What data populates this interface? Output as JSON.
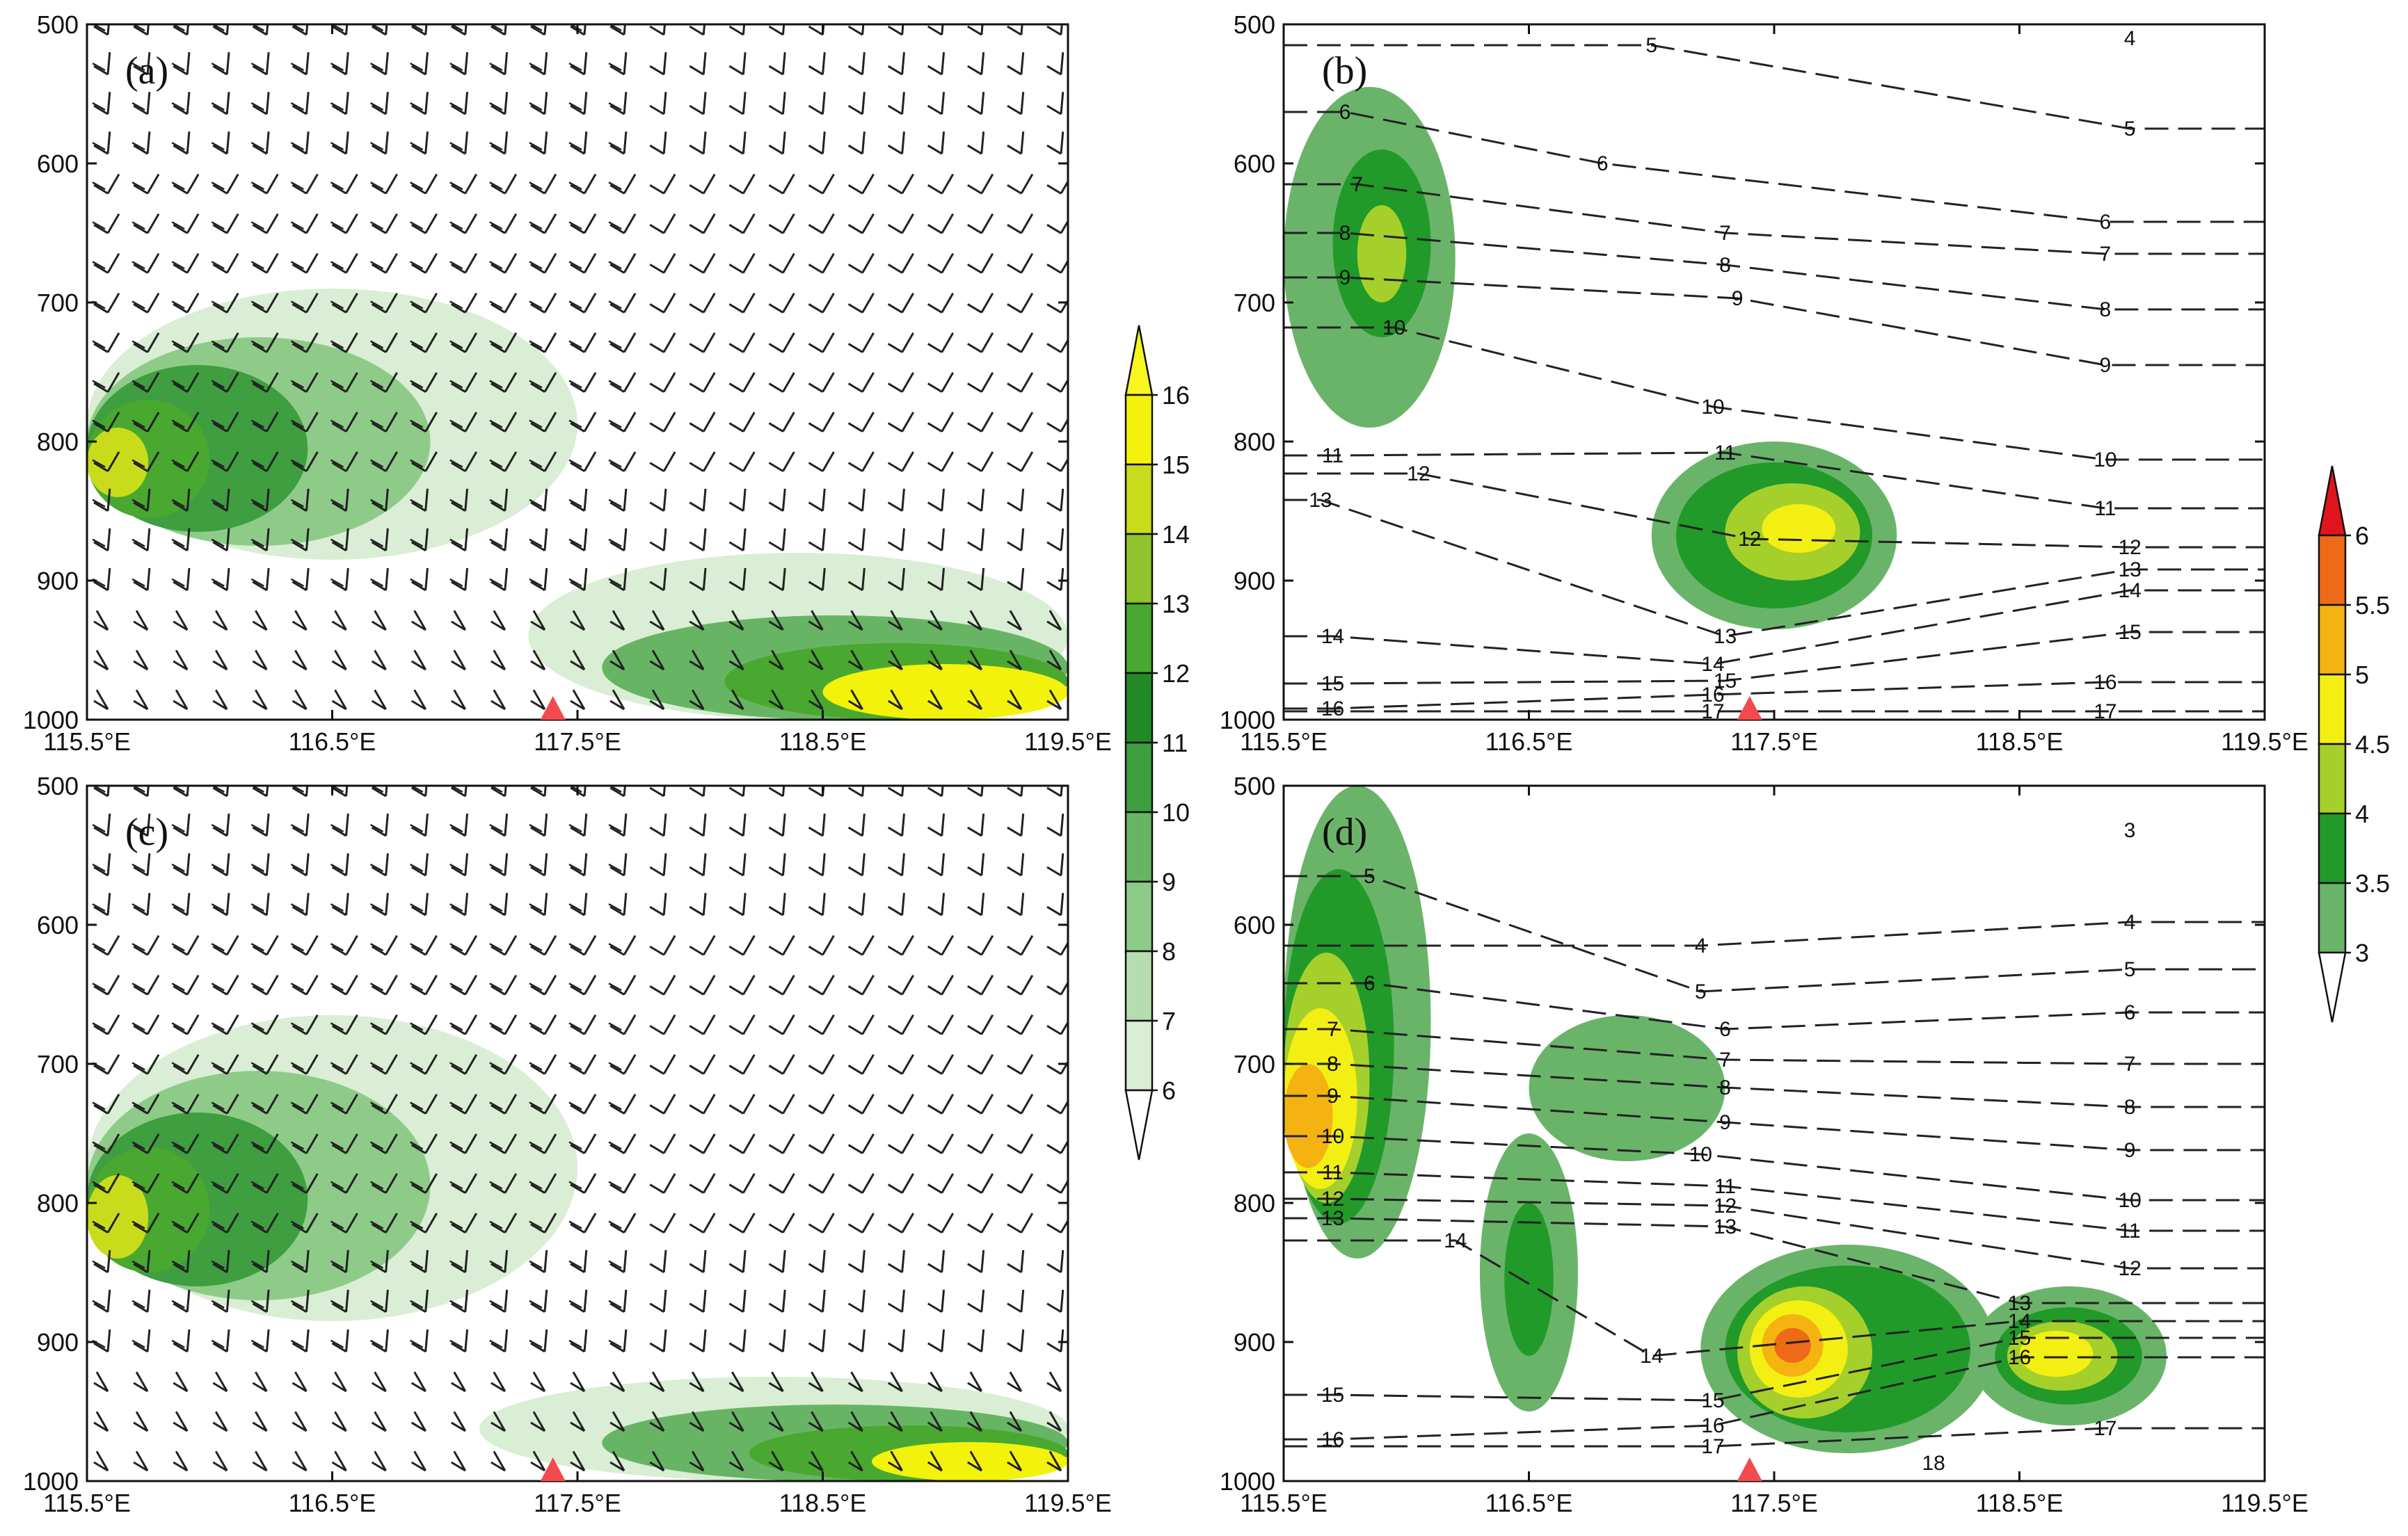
{
  "chart_data": [
    {
      "panel": "(a)",
      "type": "contour",
      "xlim": [
        115.5,
        119.5
      ],
      "ylim": [
        1000,
        500
      ],
      "xticks": [
        "115.5°E",
        "116.5°E",
        "117.5°E",
        "118.5°E",
        "119.5°E"
      ],
      "yticks": [
        "500",
        "600",
        "700",
        "800",
        "900",
        "1000"
      ],
      "overlay": "wind barbs",
      "station_marker_lon": 117.4,
      "filled_regions": [
        {
          "level": 6,
          "lon_range": [
            115.5,
            117.5
          ],
          "p_range": [
            690,
            885
          ]
        },
        {
          "level": 8,
          "lon_range": [
            115.5,
            116.9
          ],
          "p_range": [
            725,
            875
          ]
        },
        {
          "level": 10,
          "lon_range": [
            115.5,
            116.4
          ],
          "p_range": [
            745,
            865
          ]
        },
        {
          "level": 12,
          "lon_range": [
            115.5,
            116.0
          ],
          "p_range": [
            770,
            855
          ]
        },
        {
          "level": 14,
          "lon_range": [
            115.5,
            115.75
          ],
          "p_range": [
            790,
            840
          ]
        },
        {
          "level": 6,
          "lon_range": [
            117.3,
            119.5
          ],
          "p_range": [
            880,
            1000
          ]
        },
        {
          "level": 9,
          "lon_range": [
            117.6,
            119.5
          ],
          "p_range": [
            925,
            1000
          ]
        },
        {
          "level": 12,
          "lon_range": [
            118.1,
            119.5
          ],
          "p_range": [
            945,
            1000
          ]
        },
        {
          "level": 15,
          "lon_range": [
            118.5,
            119.5
          ],
          "p_range": [
            960,
            1000
          ]
        }
      ]
    },
    {
      "panel": "(b)",
      "type": "contour",
      "xlim": [
        115.5,
        119.5
      ],
      "ylim": [
        1000,
        500
      ],
      "xticks": [
        "115.5°E",
        "116.5°E",
        "117.5°E",
        "118.5°E",
        "119.5°E"
      ],
      "yticks": [
        "500",
        "600",
        "700",
        "800",
        "900",
        "1000"
      ],
      "station_marker_lon": 117.4,
      "filled_regions": [
        {
          "level": 3,
          "lon_range": [
            115.5,
            116.2
          ],
          "p_range": [
            545,
            790
          ]
        },
        {
          "level": 3.5,
          "lon_range": [
            115.7,
            116.1
          ],
          "p_range": [
            590,
            725
          ]
        },
        {
          "level": 4,
          "lon_range": [
            115.8,
            116.0
          ],
          "p_range": [
            630,
            700
          ]
        },
        {
          "level": 3,
          "lon_range": [
            117.0,
            118.0
          ],
          "p_range": [
            800,
            935
          ]
        },
        {
          "level": 3.5,
          "lon_range": [
            117.1,
            117.9
          ],
          "p_range": [
            815,
            920
          ]
        },
        {
          "level": 4,
          "lon_range": [
            117.3,
            117.85
          ],
          "p_range": [
            830,
            900
          ]
        },
        {
          "level": 4.5,
          "lon_range": [
            117.45,
            117.75
          ],
          "p_range": [
            845,
            880
          ]
        }
      ],
      "contour_labels": [
        {
          "text": "4",
          "lon": 118.95,
          "p": 510
        },
        {
          "text": "5",
          "lon": 117.0,
          "p": 515
        },
        {
          "text": "5",
          "lon": 118.95,
          "p": 575
        },
        {
          "text": "6",
          "lon": 115.75,
          "p": 563
        },
        {
          "text": "6",
          "lon": 116.8,
          "p": 600
        },
        {
          "text": "6",
          "lon": 118.85,
          "p": 642
        },
        {
          "text": "7",
          "lon": 115.8,
          "p": 615
        },
        {
          "text": "7",
          "lon": 117.3,
          "p": 650
        },
        {
          "text": "7",
          "lon": 118.85,
          "p": 665
        },
        {
          "text": "8",
          "lon": 115.75,
          "p": 650
        },
        {
          "text": "8",
          "lon": 117.3,
          "p": 673
        },
        {
          "text": "8",
          "lon": 118.85,
          "p": 705
        },
        {
          "text": "9",
          "lon": 115.75,
          "p": 682
        },
        {
          "text": "9",
          "lon": 117.35,
          "p": 697
        },
        {
          "text": "9",
          "lon": 118.85,
          "p": 745
        },
        {
          "text": "10",
          "lon": 115.95,
          "p": 718
        },
        {
          "text": "10",
          "lon": 117.25,
          "p": 775
        },
        {
          "text": "10",
          "lon": 118.85,
          "p": 813
        },
        {
          "text": "11",
          "lon": 115.7,
          "p": 810
        },
        {
          "text": "11",
          "lon": 117.3,
          "p": 808
        },
        {
          "text": "11",
          "lon": 118.85,
          "p": 848
        },
        {
          "text": "12",
          "lon": 116.05,
          "p": 823
        },
        {
          "text": "12",
          "lon": 117.4,
          "p": 870
        },
        {
          "text": "12",
          "lon": 118.95,
          "p": 876
        },
        {
          "text": "13",
          "lon": 115.65,
          "p": 842
        },
        {
          "text": "13",
          "lon": 117.3,
          "p": 940
        },
        {
          "text": "13",
          "lon": 118.95,
          "p": 892
        },
        {
          "text": "14",
          "lon": 115.7,
          "p": 940
        },
        {
          "text": "14",
          "lon": 117.25,
          "p": 960
        },
        {
          "text": "14",
          "lon": 118.95,
          "p": 907
        },
        {
          "text": "15",
          "lon": 115.7,
          "p": 974
        },
        {
          "text": "15",
          "lon": 117.3,
          "p": 972
        },
        {
          "text": "15",
          "lon": 118.95,
          "p": 937
        },
        {
          "text": "16",
          "lon": 115.7,
          "p": 992
        },
        {
          "text": "16",
          "lon": 117.25,
          "p": 982
        },
        {
          "text": "16",
          "lon": 118.85,
          "p": 973
        },
        {
          "text": "17",
          "lon": 117.25,
          "p": 994
        },
        {
          "text": "17",
          "lon": 118.85,
          "p": 994
        }
      ]
    },
    {
      "panel": "(c)",
      "type": "contour",
      "xlim": [
        115.5,
        119.5
      ],
      "ylim": [
        1000,
        500
      ],
      "xticks": [
        "115.5°E",
        "116.5°E",
        "117.5°E",
        "118.5°E",
        "119.5°E"
      ],
      "yticks": [
        "500",
        "600",
        "700",
        "800",
        "900",
        "1000"
      ],
      "overlay": "wind barbs",
      "station_marker_lon": 117.4,
      "filled_regions": [
        {
          "level": 6,
          "lon_range": [
            115.5,
            117.5
          ],
          "p_range": [
            665,
            885
          ]
        },
        {
          "level": 8,
          "lon_range": [
            115.5,
            116.9
          ],
          "p_range": [
            705,
            870
          ]
        },
        {
          "level": 10,
          "lon_range": [
            115.5,
            116.4
          ],
          "p_range": [
            735,
            860
          ]
        },
        {
          "level": 12,
          "lon_range": [
            115.5,
            116.0
          ],
          "p_range": [
            760,
            850
          ]
        },
        {
          "level": 14,
          "lon_range": [
            115.5,
            115.75
          ],
          "p_range": [
            780,
            840
          ]
        },
        {
          "level": 6,
          "lon_range": [
            117.1,
            119.5
          ],
          "p_range": [
            925,
            1000
          ]
        },
        {
          "level": 9,
          "lon_range": [
            117.6,
            119.5
          ],
          "p_range": [
            945,
            1000
          ]
        },
        {
          "level": 12,
          "lon_range": [
            118.2,
            119.5
          ],
          "p_range": [
            960,
            1000
          ]
        },
        {
          "level": 15,
          "lon_range": [
            118.7,
            119.5
          ],
          "p_range": [
            972,
            1000
          ]
        }
      ]
    },
    {
      "panel": "(d)",
      "type": "contour",
      "xlim": [
        115.5,
        119.5
      ],
      "ylim": [
        1000,
        500
      ],
      "xticks": [
        "115.5°E",
        "116.5°E",
        "117.5°E",
        "118.5°E",
        "119.5°E"
      ],
      "yticks": [
        "500",
        "600",
        "700",
        "800",
        "900",
        "1000"
      ],
      "station_marker_lon": 117.4,
      "filled_regions": [
        {
          "level": 3,
          "lon_range": [
            115.5,
            116.1
          ],
          "p_range": [
            500,
            840
          ]
        },
        {
          "level": 3.5,
          "lon_range": [
            115.5,
            115.95
          ],
          "p_range": [
            560,
            815
          ]
        },
        {
          "level": 4,
          "lon_range": [
            115.5,
            115.85
          ],
          "p_range": [
            620,
            800
          ]
        },
        {
          "level": 4.5,
          "lon_range": [
            115.5,
            115.8
          ],
          "p_range": [
            660,
            790
          ]
        },
        {
          "level": 5,
          "lon_range": [
            115.5,
            115.7
          ],
          "p_range": [
            700,
            775
          ]
        },
        {
          "level": 3,
          "lon_range": [
            116.3,
            116.7
          ],
          "p_range": [
            750,
            950
          ]
        },
        {
          "level": 3.5,
          "lon_range": [
            116.4,
            116.6
          ],
          "p_range": [
            800,
            910
          ]
        },
        {
          "level": 3,
          "lon_range": [
            116.5,
            117.3
          ],
          "p_range": [
            665,
            770
          ]
        },
        {
          "level": 3,
          "lon_range": [
            117.2,
            118.4
          ],
          "p_range": [
            830,
            980
          ]
        },
        {
          "level": 3.5,
          "lon_range": [
            117.3,
            118.3
          ],
          "p_range": [
            845,
            965
          ]
        },
        {
          "level": 4,
          "lon_range": [
            117.35,
            117.9
          ],
          "p_range": [
            860,
            955
          ]
        },
        {
          "level": 4.5,
          "lon_range": [
            117.4,
            117.8
          ],
          "p_range": [
            870,
            940
          ]
        },
        {
          "level": 5,
          "lon_range": [
            117.45,
            117.7
          ],
          "p_range": [
            880,
            925
          ]
        },
        {
          "level": 5.5,
          "lon_range": [
            117.5,
            117.65
          ],
          "p_range": [
            890,
            915
          ]
        },
        {
          "level": 3,
          "lon_range": [
            118.3,
            119.1
          ],
          "p_range": [
            860,
            960
          ]
        },
        {
          "level": 3.5,
          "lon_range": [
            118.4,
            119.0
          ],
          "p_range": [
            875,
            945
          ]
        },
        {
          "level": 4,
          "lon_range": [
            118.45,
            118.9
          ],
          "p_range": [
            885,
            935
          ]
        },
        {
          "level": 4.5,
          "lon_range": [
            118.5,
            118.8
          ],
          "p_range": [
            892,
            925
          ]
        }
      ],
      "contour_labels": [
        {
          "text": "3",
          "lon": 118.95,
          "p": 532
        },
        {
          "text": "4",
          "lon": 117.2,
          "p": 615
        },
        {
          "text": "4",
          "lon": 118.95,
          "p": 598
        },
        {
          "text": "5",
          "lon": 115.85,
          "p": 565
        },
        {
          "text": "5",
          "lon": 117.2,
          "p": 648
        },
        {
          "text": "5",
          "lon": 118.95,
          "p": 632
        },
        {
          "text": "6",
          "lon": 115.85,
          "p": 642
        },
        {
          "text": "6",
          "lon": 117.3,
          "p": 675
        },
        {
          "text": "6",
          "lon": 118.95,
          "p": 663
        },
        {
          "text": "7",
          "lon": 115.7,
          "p": 675
        },
        {
          "text": "7",
          "lon": 117.3,
          "p": 697
        },
        {
          "text": "7",
          "lon": 118.95,
          "p": 700
        },
        {
          "text": "8",
          "lon": 115.7,
          "p": 700
        },
        {
          "text": "8",
          "lon": 117.3,
          "p": 717
        },
        {
          "text": "8",
          "lon": 118.95,
          "p": 731
        },
        {
          "text": "9",
          "lon": 115.7,
          "p": 723
        },
        {
          "text": "9",
          "lon": 117.3,
          "p": 742
        },
        {
          "text": "9",
          "lon": 118.95,
          "p": 762
        },
        {
          "text": "10",
          "lon": 115.7,
          "p": 752
        },
        {
          "text": "10",
          "lon": 117.2,
          "p": 765
        },
        {
          "text": "10",
          "lon": 118.95,
          "p": 798
        },
        {
          "text": "11",
          "lon": 115.7,
          "p": 778
        },
        {
          "text": "11",
          "lon": 117.3,
          "p": 788
        },
        {
          "text": "11",
          "lon": 118.95,
          "p": 820
        },
        {
          "text": "12",
          "lon": 115.7,
          "p": 797
        },
        {
          "text": "12",
          "lon": 117.3,
          "p": 802
        },
        {
          "text": "12",
          "lon": 118.95,
          "p": 847
        },
        {
          "text": "13",
          "lon": 115.7,
          "p": 811
        },
        {
          "text": "13",
          "lon": 117.3,
          "p": 817
        },
        {
          "text": "13",
          "lon": 118.5,
          "p": 872
        },
        {
          "text": "14",
          "lon": 116.2,
          "p": 827
        },
        {
          "text": "14",
          "lon": 117.0,
          "p": 910
        },
        {
          "text": "14",
          "lon": 118.5,
          "p": 885
        },
        {
          "text": "15",
          "lon": 115.7,
          "p": 938
        },
        {
          "text": "15",
          "lon": 117.25,
          "p": 942
        },
        {
          "text": "15",
          "lon": 118.5,
          "p": 897
        },
        {
          "text": "16",
          "lon": 115.7,
          "p": 970
        },
        {
          "text": "16",
          "lon": 117.25,
          "p": 960
        },
        {
          "text": "16",
          "lon": 118.5,
          "p": 911
        },
        {
          "text": "17",
          "lon": 117.25,
          "p": 975
        },
        {
          "text": "17",
          "lon": 118.85,
          "p": 962
        },
        {
          "text": "18",
          "lon": 118.15,
          "p": 987
        }
      ]
    }
  ],
  "colorbars": [
    {
      "levels": [
        "6",
        "7",
        "8",
        "9",
        "10",
        "11",
        "12",
        "13",
        "14",
        "15",
        "16"
      ],
      "colors": [
        "#ffffff",
        "#d9eed4",
        "#b6ddaf",
        "#8ecb88",
        "#67b564",
        "#3e9e40",
        "#218a26",
        "#49a830",
        "#8fc42c",
        "#c8dc1b",
        "#f3f20a",
        "#f8f520"
      ]
    },
    {
      "levels": [
        "3",
        "3.5",
        "4",
        "4.5",
        "5",
        "5.5",
        "6"
      ],
      "colors": [
        "#ffffff",
        "#6ab46a",
        "#219a2a",
        "#a5d02b",
        "#f4ef12",
        "#f5b312",
        "#ef6a18",
        "#e0141c"
      ]
    }
  ],
  "station_color": "#f24a4f"
}
